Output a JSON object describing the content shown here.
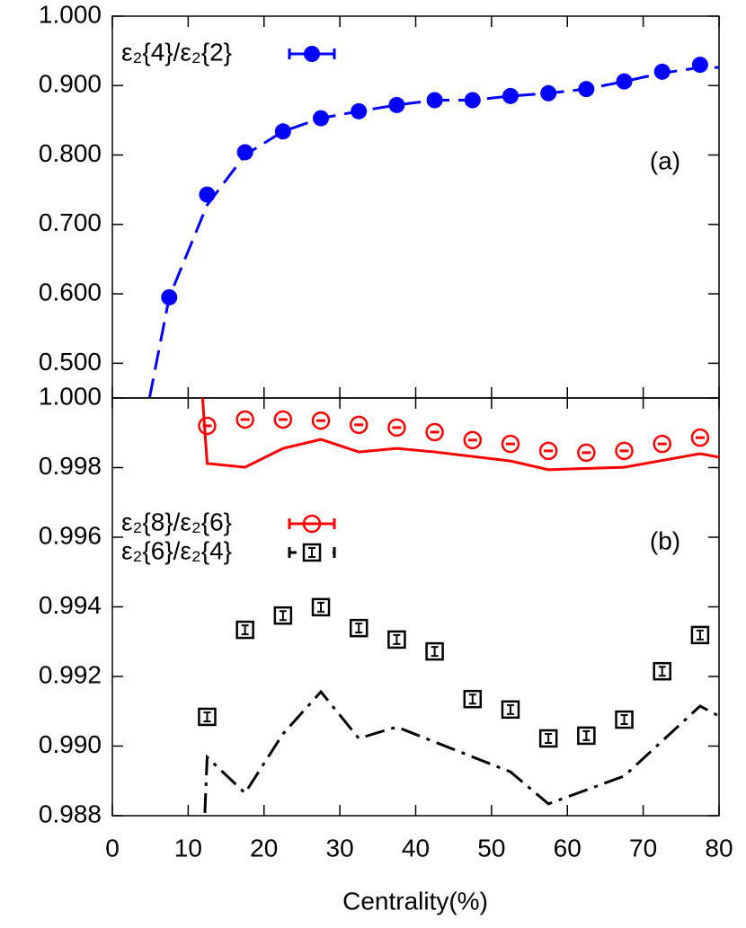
{
  "chart_data": [
    {
      "type": "scatter",
      "annotation": "(a)",
      "xlim": [
        0,
        80
      ],
      "xticks": [
        0,
        10,
        20,
        30,
        40,
        50,
        60,
        70,
        80
      ],
      "ylim": [
        0.45,
        1.0
      ],
      "yticks": [
        {
          "value": 0.5,
          "label": "0.500"
        },
        {
          "value": 0.6,
          "label": "0.600"
        },
        {
          "value": 0.7,
          "label": "0.700"
        },
        {
          "value": 0.8,
          "label": "0.800"
        },
        {
          "value": 0.9,
          "label": "0.900"
        },
        {
          "value": 1.0,
          "label": "1.000"
        }
      ],
      "legend": "upper left",
      "series": [
        {
          "name": "ε₂{4}/ε₂{2}",
          "color": "#0000ff",
          "marker": "circle-filled",
          "line_style": "dashed",
          "x": [
            7.5,
            12.5,
            17.5,
            22.5,
            27.5,
            32.5,
            37.5,
            42.5,
            47.5,
            52.5,
            57.5,
            62.5,
            67.5,
            72.5,
            77.5
          ],
          "values": [
            0.595,
            0.743,
            0.804,
            0.834,
            0.853,
            0.863,
            0.872,
            0.879,
            0.879,
            0.885,
            0.889,
            0.895,
            0.906,
            0.92,
            0.93
          ]
        },
        {
          "color": "#0000ff",
          "line_style": "dashed",
          "x": [
            4.9,
            7.5,
            12.5,
            17.5,
            22.5,
            27.5,
            32.5,
            37.5,
            42.5,
            47.5,
            52.5,
            57.5,
            62.5,
            67.5,
            72.5,
            77.5,
            80
          ],
          "values": [
            0.45,
            0.595,
            0.728,
            0.8,
            0.834,
            0.853,
            0.863,
            0.872,
            0.879,
            0.879,
            0.885,
            0.889,
            0.895,
            0.906,
            0.918,
            0.926,
            0.926
          ]
        }
      ]
    },
    {
      "type": "scatter",
      "annotation": "(b)",
      "xlabel": "Centrality(%)",
      "xlim": [
        0,
        80
      ],
      "xticks": [
        0,
        10,
        20,
        30,
        40,
        50,
        60,
        70,
        80
      ],
      "ylim": [
        0.988,
        1.0
      ],
      "yticks": [
        {
          "value": 0.988,
          "label": "0.988"
        },
        {
          "value": 0.99,
          "label": "0.990"
        },
        {
          "value": 0.992,
          "label": "0.992"
        },
        {
          "value": 0.994,
          "label": "0.994"
        },
        {
          "value": 0.996,
          "label": "0.996"
        },
        {
          "value": 0.998,
          "label": "0.998"
        },
        {
          "value": 1.0,
          "label": "1.000"
        }
      ],
      "legend": "center left",
      "series": [
        {
          "name": "ε₂{8}/ε₂{6}",
          "color": "#ff0000",
          "marker": "circle-open",
          "line_style": "solid",
          "x": [
            12.5,
            17.5,
            22.5,
            27.5,
            32.5,
            37.5,
            42.5,
            47.5,
            52.5,
            57.5,
            62.5,
            67.5,
            72.5,
            77.5
          ],
          "values": [
            0.9992,
            0.99938,
            0.99938,
            0.99935,
            0.99923,
            0.99915,
            0.99902,
            0.99879,
            0.99868,
            0.99848,
            0.99843,
            0.99848,
            0.99868,
            0.99886
          ]
        },
        {
          "name": "ε₂{6}/ε₂{4}",
          "color": "#000000",
          "marker": "square-open",
          "line_style": "dashdot",
          "x": [
            12.5,
            17.5,
            22.5,
            27.5,
            32.5,
            37.5,
            42.5,
            47.5,
            52.5,
            57.5,
            62.5,
            67.5,
            72.5,
            77.5
          ],
          "values": [
            0.99084,
            0.99334,
            0.99375,
            0.99399,
            0.99339,
            0.99306,
            0.99272,
            0.99135,
            0.99105,
            0.99022,
            0.9903,
            0.99076,
            0.99215,
            0.99319
          ]
        },
        {
          "color": "#ff0000",
          "line_style": "solid",
          "x": [
            11.9,
            12.5,
            17.5,
            22.5,
            27.5,
            32.5,
            37.5,
            42.5,
            52.5,
            57.5,
            67.5,
            77.5,
            80
          ],
          "values": [
            1.0,
            0.99812,
            0.99801,
            0.99855,
            0.99881,
            0.99845,
            0.99855,
            0.99845,
            0.99819,
            0.99794,
            0.99801,
            0.9984,
            0.9983
          ]
        },
        {
          "color": "#000000",
          "line_style": "dashdot",
          "x": [
            12.2,
            12.5,
            17.5,
            22.5,
            27.5,
            32.5,
            37.5,
            42.5,
            52.5,
            57.5,
            67.5,
            77.5,
            80
          ],
          "values": [
            0.98808,
            0.98968,
            0.98865,
            0.99035,
            0.99156,
            0.99022,
            0.99055,
            0.99012,
            0.98926,
            0.98834,
            0.98914,
            0.99115,
            0.99086
          ]
        }
      ]
    }
  ]
}
